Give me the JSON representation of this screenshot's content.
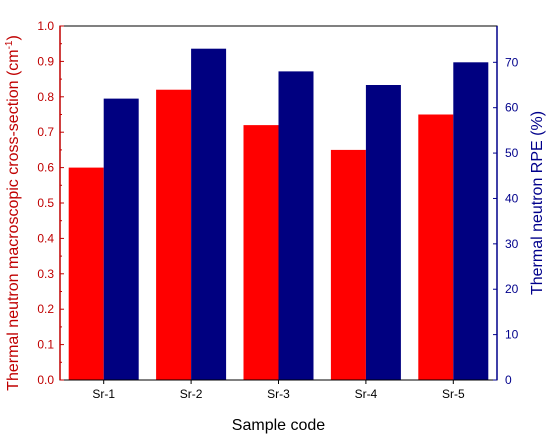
{
  "chart_data": {
    "type": "bar",
    "categories": [
      "Sr-1",
      "Sr-2",
      "Sr-3",
      "Sr-4",
      "Sr-5"
    ],
    "series": [
      {
        "name": "Thermal neutron macroscopic cross-section (cm-1)",
        "axis": "left",
        "color": "#ff0000",
        "values": [
          0.6,
          0.82,
          0.72,
          0.65,
          0.75
        ]
      },
      {
        "name": "Thermal neutron RPE (%)",
        "axis": "right",
        "color": "#000080",
        "values": [
          62,
          73,
          68,
          65,
          70
        ]
      }
    ],
    "xlabel": "Sample code",
    "ylabel_left": "Thermal neutron macroscopic cross-section (cm",
    "ylabel_left_sup": "-1",
    "ylabel_left_suffix": ")",
    "ylabel_right": "Thermal neutron  RPE (%)",
    "ylim_left": [
      0,
      1.0
    ],
    "ylim_right": [
      0,
      78
    ],
    "yticks_left": [
      "0.0",
      "0.1",
      "0.2",
      "0.3",
      "0.4",
      "0.5",
      "0.6",
      "0.7",
      "0.8",
      "0.9",
      "1.0"
    ],
    "yticks_right": [
      "0",
      "10",
      "20",
      "30",
      "40",
      "50",
      "60",
      "70"
    ],
    "left_axis_color": "#c00000",
    "right_axis_color": "#00008b",
    "grid": false,
    "legend": "none"
  }
}
